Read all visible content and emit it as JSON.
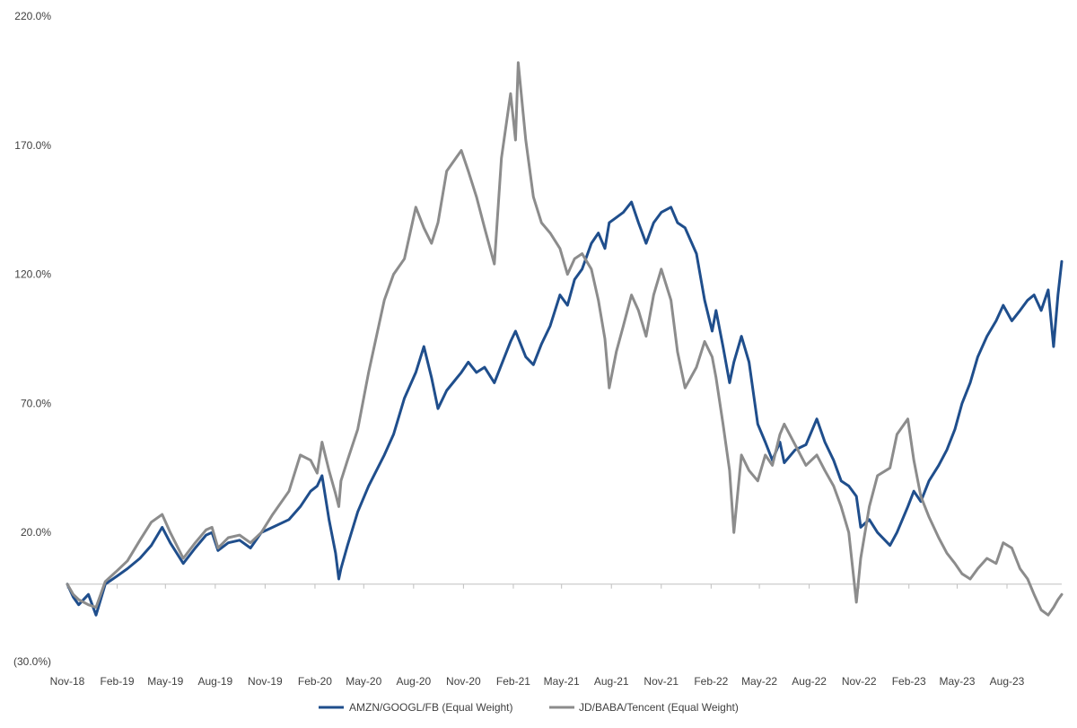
{
  "chart_data": {
    "type": "line",
    "title": "",
    "xlabel": "",
    "ylabel": "",
    "x_unit": "date",
    "x_tick_labels": [
      "Nov-18",
      "Feb-19",
      "May-19",
      "Aug-19",
      "Nov-19",
      "Feb-20",
      "May-20",
      "Aug-20",
      "Nov-20",
      "Feb-21",
      "May-21",
      "Aug-21",
      "Nov-21",
      "Feb-22",
      "May-22",
      "Aug-22",
      "Nov-22",
      "Feb-23",
      "May-23",
      "Aug-23"
    ],
    "x_tick_dates": [
      "2018-11-01",
      "2019-02-01",
      "2019-05-01",
      "2019-08-01",
      "2019-11-01",
      "2020-02-01",
      "2020-05-01",
      "2020-08-01",
      "2020-11-01",
      "2021-02-01",
      "2021-05-01",
      "2021-08-01",
      "2021-11-01",
      "2022-02-01",
      "2022-05-01",
      "2022-08-01",
      "2022-11-01",
      "2023-02-01",
      "2023-05-01",
      "2023-08-01"
    ],
    "xlim": [
      "2018-11-01",
      "2023-11-10"
    ],
    "y_ticks": [
      -30,
      20,
      70,
      120,
      170,
      220
    ],
    "y_tick_labels": [
      "(30.0%)",
      "20.0%",
      "70.0%",
      "120.0%",
      "170.0%",
      "220.0%"
    ],
    "ylim": [
      -30,
      220
    ],
    "y_unit": "percent",
    "grid": false,
    "zero_line": true,
    "legend_position": "bottom",
    "series": [
      {
        "name": "AMZN/GOOGL/FB (Equal Weight)",
        "color": "#1f4e8c",
        "points": [
          [
            "2018-11-01",
            0
          ],
          [
            "2018-11-12",
            -5
          ],
          [
            "2018-11-22",
            -8
          ],
          [
            "2018-12-10",
            -4
          ],
          [
            "2018-12-24",
            -12
          ],
          [
            "2019-01-10",
            0
          ],
          [
            "2019-01-31",
            3
          ],
          [
            "2019-02-20",
            6
          ],
          [
            "2019-03-15",
            10
          ],
          [
            "2019-04-05",
            15
          ],
          [
            "2019-04-25",
            22
          ],
          [
            "2019-05-10",
            16
          ],
          [
            "2019-06-03",
            8
          ],
          [
            "2019-06-25",
            14
          ],
          [
            "2019-07-15",
            19
          ],
          [
            "2019-07-26",
            20
          ],
          [
            "2019-08-06",
            13
          ],
          [
            "2019-08-25",
            16
          ],
          [
            "2019-09-15",
            17
          ],
          [
            "2019-10-05",
            14
          ],
          [
            "2019-10-25",
            20
          ],
          [
            "2019-11-15",
            22
          ],
          [
            "2019-12-15",
            25
          ],
          [
            "2020-01-05",
            30
          ],
          [
            "2020-01-24",
            36
          ],
          [
            "2020-02-05",
            38
          ],
          [
            "2020-02-14",
            42
          ],
          [
            "2020-02-27",
            25
          ],
          [
            "2020-03-10",
            12
          ],
          [
            "2020-03-16",
            2
          ],
          [
            "2020-03-20",
            6
          ],
          [
            "2020-04-01",
            15
          ],
          [
            "2020-04-20",
            28
          ],
          [
            "2020-05-10",
            38
          ],
          [
            "2020-06-08",
            50
          ],
          [
            "2020-06-25",
            58
          ],
          [
            "2020-07-15",
            72
          ],
          [
            "2020-08-05",
            82
          ],
          [
            "2020-08-20",
            92
          ],
          [
            "2020-09-03",
            80
          ],
          [
            "2020-09-15",
            68
          ],
          [
            "2020-10-01",
            75
          ],
          [
            "2020-10-28",
            82
          ],
          [
            "2020-11-10",
            86
          ],
          [
            "2020-11-25",
            82
          ],
          [
            "2020-12-10",
            84
          ],
          [
            "2020-12-28",
            78
          ],
          [
            "2021-01-10",
            85
          ],
          [
            "2021-01-27",
            94
          ],
          [
            "2021-02-05",
            98
          ],
          [
            "2021-02-24",
            88
          ],
          [
            "2021-03-10",
            85
          ],
          [
            "2021-03-25",
            93
          ],
          [
            "2021-04-10",
            100
          ],
          [
            "2021-04-28",
            112
          ],
          [
            "2021-05-12",
            108
          ],
          [
            "2021-05-25",
            118
          ],
          [
            "2021-06-08",
            122
          ],
          [
            "2021-06-25",
            132
          ],
          [
            "2021-07-08",
            136
          ],
          [
            "2021-07-20",
            130
          ],
          [
            "2021-07-28",
            140
          ],
          [
            "2021-08-10",
            142
          ],
          [
            "2021-08-23",
            144
          ],
          [
            "2021-09-07",
            148
          ],
          [
            "2021-09-20",
            140
          ],
          [
            "2021-10-04",
            132
          ],
          [
            "2021-10-18",
            140
          ],
          [
            "2021-11-01",
            144
          ],
          [
            "2021-11-19",
            146
          ],
          [
            "2021-12-01",
            140
          ],
          [
            "2021-12-15",
            138
          ],
          [
            "2022-01-05",
            128
          ],
          [
            "2022-01-20",
            110
          ],
          [
            "2022-02-03",
            98
          ],
          [
            "2022-02-10",
            106
          ],
          [
            "2022-02-23",
            92
          ],
          [
            "2022-03-07",
            78
          ],
          [
            "2022-03-15",
            86
          ],
          [
            "2022-03-29",
            96
          ],
          [
            "2022-04-12",
            86
          ],
          [
            "2022-04-28",
            62
          ],
          [
            "2022-05-12",
            55
          ],
          [
            "2022-05-25",
            48
          ],
          [
            "2022-06-08",
            55
          ],
          [
            "2022-06-16",
            47
          ],
          [
            "2022-07-06",
            52
          ],
          [
            "2022-07-26",
            54
          ],
          [
            "2022-08-15",
            64
          ],
          [
            "2022-08-30",
            55
          ],
          [
            "2022-09-15",
            48
          ],
          [
            "2022-09-29",
            40
          ],
          [
            "2022-10-13",
            38
          ],
          [
            "2022-10-27",
            34
          ],
          [
            "2022-11-04",
            22
          ],
          [
            "2022-11-20",
            25
          ],
          [
            "2022-12-05",
            20
          ],
          [
            "2022-12-28",
            15
          ],
          [
            "2023-01-10",
            20
          ],
          [
            "2023-01-30",
            30
          ],
          [
            "2023-02-10",
            36
          ],
          [
            "2023-02-23",
            32
          ],
          [
            "2023-03-10",
            40
          ],
          [
            "2023-03-28",
            46
          ],
          [
            "2023-04-12",
            52
          ],
          [
            "2023-04-27",
            60
          ],
          [
            "2023-05-10",
            70
          ],
          [
            "2023-05-25",
            78
          ],
          [
            "2023-06-08",
            88
          ],
          [
            "2023-06-25",
            96
          ],
          [
            "2023-07-12",
            102
          ],
          [
            "2023-07-25",
            108
          ],
          [
            "2023-08-10",
            102
          ],
          [
            "2023-08-25",
            106
          ],
          [
            "2023-09-08",
            110
          ],
          [
            "2023-09-20",
            112
          ],
          [
            "2023-10-03",
            106
          ],
          [
            "2023-10-16",
            114
          ],
          [
            "2023-10-26",
            92
          ],
          [
            "2023-11-03",
            112
          ],
          [
            "2023-11-10",
            125
          ]
        ]
      },
      {
        "name": "JD/BABA/Tencent (Equal Weight)",
        "color": "#8c8c8c",
        "points": [
          [
            "2018-11-01",
            0
          ],
          [
            "2018-11-12",
            -4
          ],
          [
            "2018-11-22",
            -6
          ],
          [
            "2018-12-10",
            -8
          ],
          [
            "2018-12-24",
            -9
          ],
          [
            "2019-01-10",
            1
          ],
          [
            "2019-01-31",
            5
          ],
          [
            "2019-02-20",
            9
          ],
          [
            "2019-03-15",
            17
          ],
          [
            "2019-04-05",
            24
          ],
          [
            "2019-04-25",
            27
          ],
          [
            "2019-05-10",
            20
          ],
          [
            "2019-06-03",
            10
          ],
          [
            "2019-06-25",
            16
          ],
          [
            "2019-07-15",
            21
          ],
          [
            "2019-07-26",
            22
          ],
          [
            "2019-08-06",
            14
          ],
          [
            "2019-08-25",
            18
          ],
          [
            "2019-09-15",
            19
          ],
          [
            "2019-10-05",
            16
          ],
          [
            "2019-10-25",
            20
          ],
          [
            "2019-11-15",
            27
          ],
          [
            "2019-12-15",
            36
          ],
          [
            "2020-01-05",
            50
          ],
          [
            "2020-01-24",
            48
          ],
          [
            "2020-02-05",
            43
          ],
          [
            "2020-02-14",
            55
          ],
          [
            "2020-02-27",
            44
          ],
          [
            "2020-03-10",
            35
          ],
          [
            "2020-03-16",
            30
          ],
          [
            "2020-03-20",
            40
          ],
          [
            "2020-04-01",
            48
          ],
          [
            "2020-04-20",
            60
          ],
          [
            "2020-05-10",
            82
          ],
          [
            "2020-06-08",
            110
          ],
          [
            "2020-06-25",
            120
          ],
          [
            "2020-07-15",
            126
          ],
          [
            "2020-08-05",
            146
          ],
          [
            "2020-08-20",
            138
          ],
          [
            "2020-09-03",
            132
          ],
          [
            "2020-09-15",
            140
          ],
          [
            "2020-10-01",
            160
          ],
          [
            "2020-10-28",
            168
          ],
          [
            "2020-11-10",
            160
          ],
          [
            "2020-11-25",
            150
          ],
          [
            "2020-12-10",
            138
          ],
          [
            "2020-12-28",
            124
          ],
          [
            "2021-01-10",
            165
          ],
          [
            "2021-01-27",
            190
          ],
          [
            "2021-02-05",
            172
          ],
          [
            "2021-02-10",
            202
          ],
          [
            "2021-02-24",
            172
          ],
          [
            "2021-03-10",
            150
          ],
          [
            "2021-03-25",
            140
          ],
          [
            "2021-04-10",
            136
          ],
          [
            "2021-04-28",
            130
          ],
          [
            "2021-05-12",
            120
          ],
          [
            "2021-05-25",
            126
          ],
          [
            "2021-06-08",
            128
          ],
          [
            "2021-06-25",
            122
          ],
          [
            "2021-07-08",
            110
          ],
          [
            "2021-07-20",
            95
          ],
          [
            "2021-07-28",
            76
          ],
          [
            "2021-08-10",
            90
          ],
          [
            "2021-08-23",
            100
          ],
          [
            "2021-09-07",
            112
          ],
          [
            "2021-09-20",
            106
          ],
          [
            "2021-10-04",
            96
          ],
          [
            "2021-10-18",
            112
          ],
          [
            "2021-11-01",
            122
          ],
          [
            "2021-11-19",
            110
          ],
          [
            "2021-12-01",
            90
          ],
          [
            "2021-12-15",
            76
          ],
          [
            "2022-01-05",
            84
          ],
          [
            "2022-01-20",
            94
          ],
          [
            "2022-02-03",
            88
          ],
          [
            "2022-02-10",
            80
          ],
          [
            "2022-02-23",
            62
          ],
          [
            "2022-03-07",
            44
          ],
          [
            "2022-03-15",
            20
          ],
          [
            "2022-03-29",
            50
          ],
          [
            "2022-04-12",
            44
          ],
          [
            "2022-04-28",
            40
          ],
          [
            "2022-05-12",
            50
          ],
          [
            "2022-05-25",
            46
          ],
          [
            "2022-06-08",
            58
          ],
          [
            "2022-06-16",
            62
          ],
          [
            "2022-07-06",
            54
          ],
          [
            "2022-07-26",
            46
          ],
          [
            "2022-08-15",
            50
          ],
          [
            "2022-08-30",
            44
          ],
          [
            "2022-09-15",
            38
          ],
          [
            "2022-09-29",
            30
          ],
          [
            "2022-10-13",
            20
          ],
          [
            "2022-10-27",
            -7
          ],
          [
            "2022-11-04",
            10
          ],
          [
            "2022-11-20",
            30
          ],
          [
            "2022-12-05",
            42
          ],
          [
            "2022-12-28",
            45
          ],
          [
            "2023-01-10",
            58
          ],
          [
            "2023-01-30",
            64
          ],
          [
            "2023-02-10",
            48
          ],
          [
            "2023-02-23",
            34
          ],
          [
            "2023-03-10",
            26
          ],
          [
            "2023-03-28",
            18
          ],
          [
            "2023-04-12",
            12
          ],
          [
            "2023-04-27",
            8
          ],
          [
            "2023-05-10",
            4
          ],
          [
            "2023-05-25",
            2
          ],
          [
            "2023-06-08",
            6
          ],
          [
            "2023-06-25",
            10
          ],
          [
            "2023-07-12",
            8
          ],
          [
            "2023-07-25",
            16
          ],
          [
            "2023-08-10",
            14
          ],
          [
            "2023-08-25",
            6
          ],
          [
            "2023-09-08",
            2
          ],
          [
            "2023-09-20",
            -4
          ],
          [
            "2023-10-03",
            -10
          ],
          [
            "2023-10-16",
            -12
          ],
          [
            "2023-10-26",
            -9
          ],
          [
            "2023-11-03",
            -6
          ],
          [
            "2023-11-10",
            -4
          ]
        ]
      }
    ]
  }
}
